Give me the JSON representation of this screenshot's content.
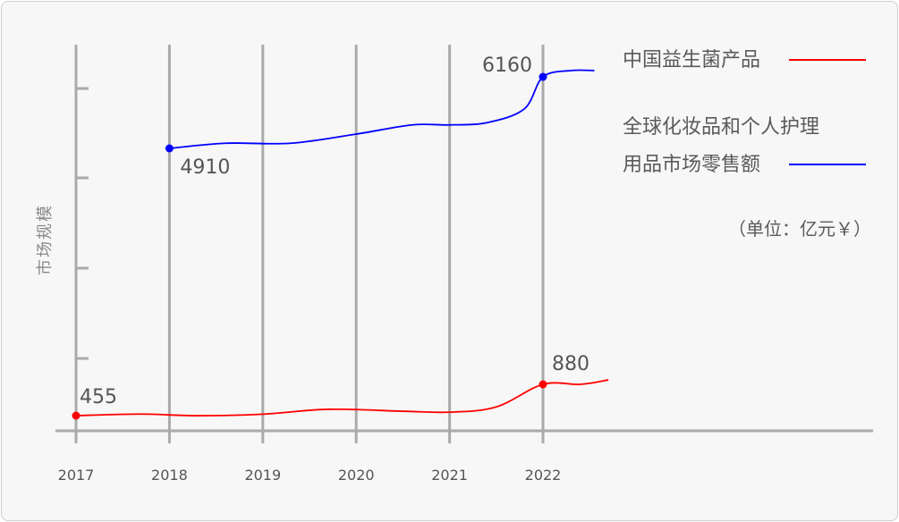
{
  "chart_data": {
    "type": "line",
    "x": [
      "2017",
      "2018",
      "2019",
      "2020",
      "2021",
      "2022"
    ],
    "ylabel": "市场规模",
    "unit_note": "（单位：亿元￥）",
    "series": [
      {
        "name": "中国益生菌产品",
        "color": "#ff0000",
        "points": [
          {
            "x": 2017.0,
            "y": 455
          },
          {
            "x": 2017.7,
            "y": 476
          },
          {
            "x": 2018.3,
            "y": 454
          },
          {
            "x": 2019.0,
            "y": 475
          },
          {
            "x": 2019.7,
            "y": 541
          },
          {
            "x": 2020.5,
            "y": 515
          },
          {
            "x": 2021.0,
            "y": 502
          },
          {
            "x": 2021.5,
            "y": 573
          },
          {
            "x": 2022.0,
            "y": 880
          },
          {
            "x": 2022.4,
            "y": 880
          },
          {
            "x": 2022.7,
            "y": 940
          }
        ],
        "labels": [
          {
            "x": 2017,
            "y": 455,
            "text": "455"
          },
          {
            "x": 2022,
            "y": 880,
            "text": "880"
          }
        ]
      },
      {
        "name": "全球化妆品和个人护理用品市场零售额",
        "color": "#0000ff",
        "points": [
          {
            "x": 2018.0,
            "y": 4910
          },
          {
            "x": 2018.6,
            "y": 5000
          },
          {
            "x": 2019.3,
            "y": 5000
          },
          {
            "x": 2020.0,
            "y": 5160
          },
          {
            "x": 2020.6,
            "y": 5320
          },
          {
            "x": 2021.0,
            "y": 5320
          },
          {
            "x": 2021.4,
            "y": 5360
          },
          {
            "x": 2021.8,
            "y": 5600
          },
          {
            "x": 2022.0,
            "y": 6160
          },
          {
            "x": 2022.3,
            "y": 6270
          },
          {
            "x": 2022.55,
            "y": 6270
          }
        ],
        "labels": [
          {
            "x": 2018,
            "y": 4910,
            "text": "4910"
          },
          {
            "x": 2022,
            "y": 6160,
            "text": "6160"
          }
        ]
      }
    ],
    "legend": "top-right",
    "grid": "vertical"
  },
  "legend": {
    "red_line1": "中国益生菌产品",
    "blue_line1": "全球化妆品和个人护理",
    "blue_line2": "用品市场零售额"
  }
}
